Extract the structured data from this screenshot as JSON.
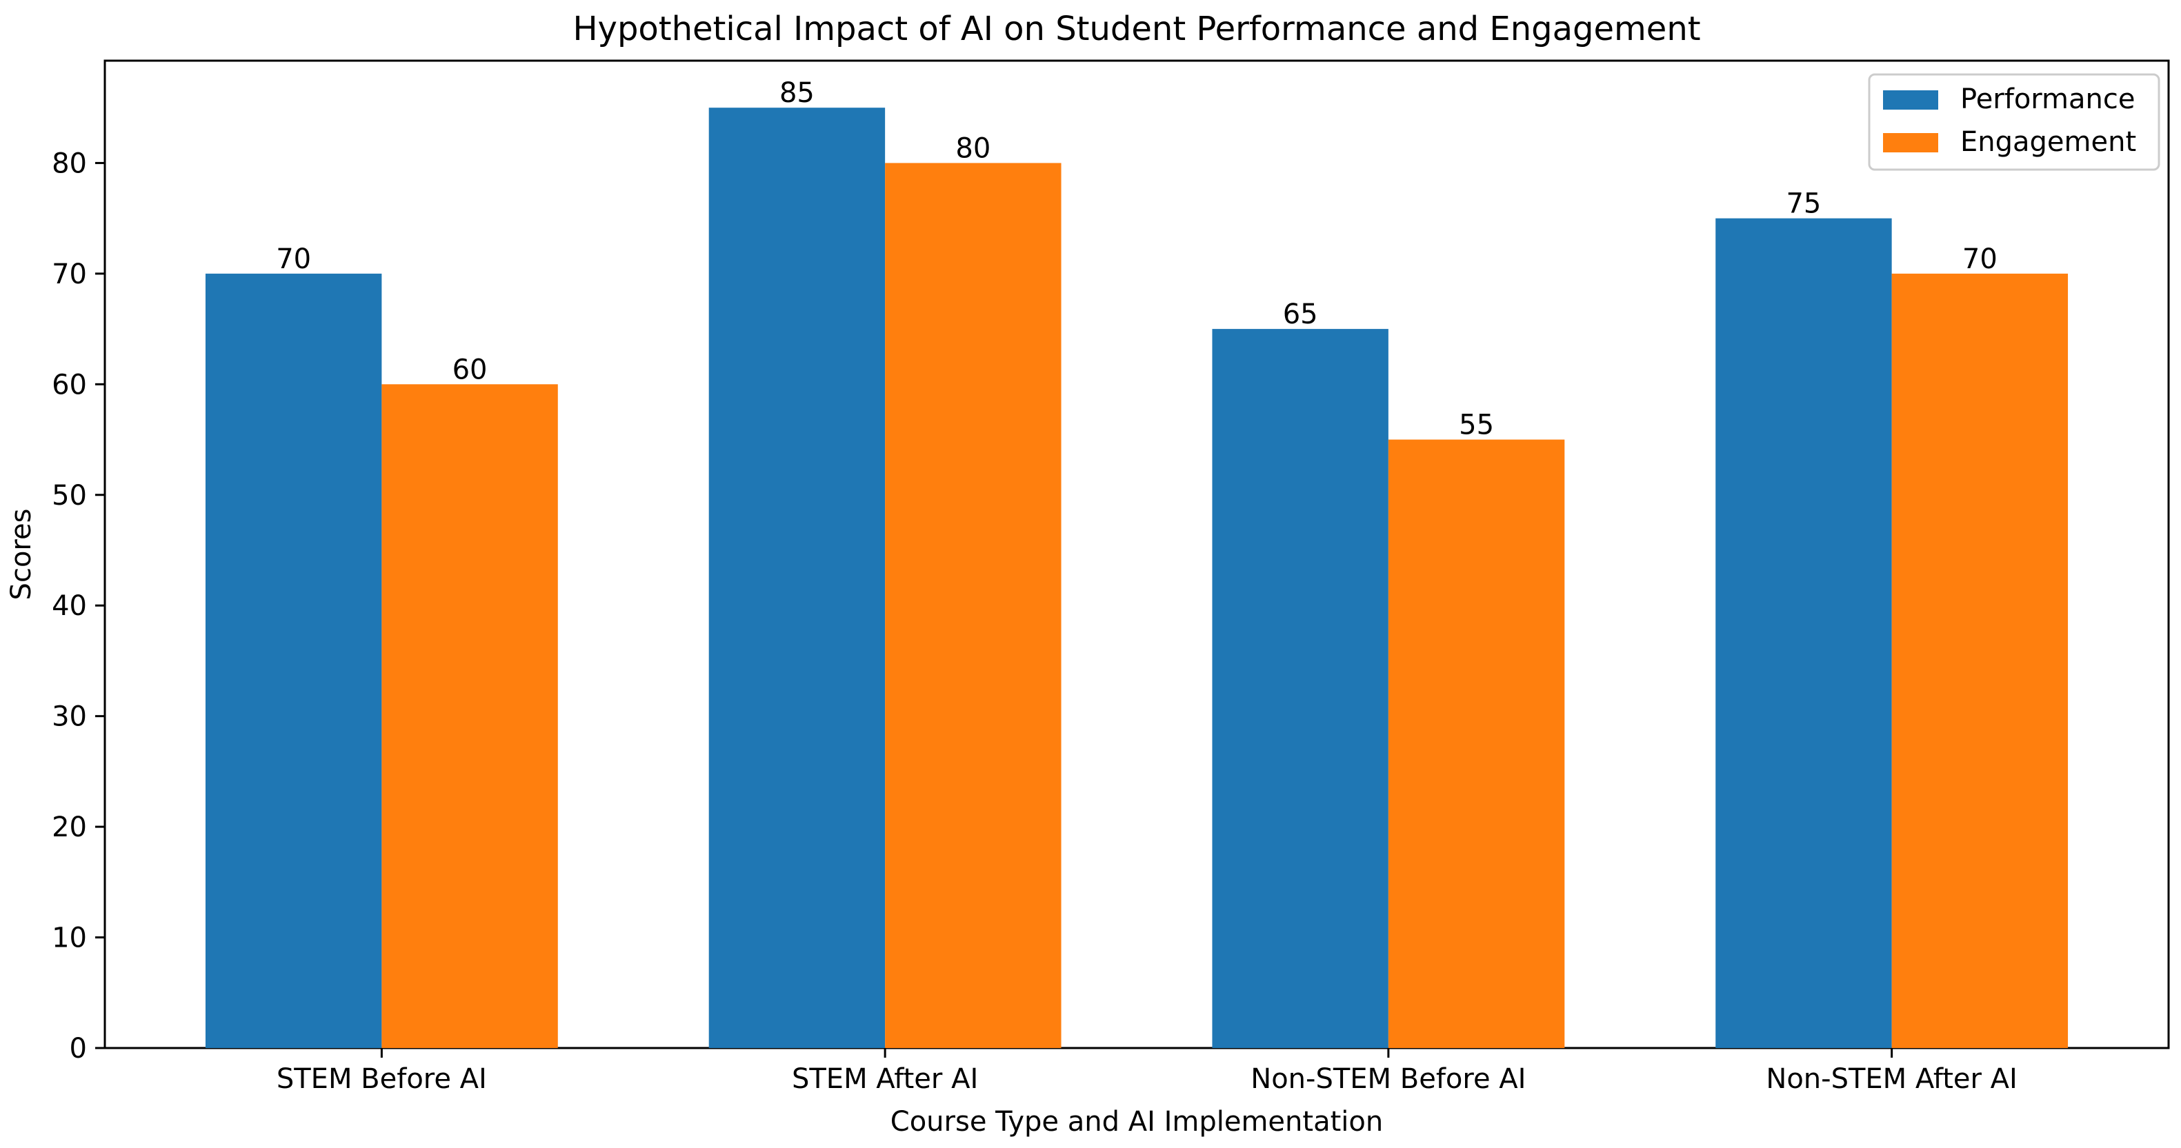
{
  "chart_data": {
    "type": "bar",
    "title": "Hypothetical Impact of AI on Student Performance and Engagement",
    "xlabel": "Course Type and AI Implementation",
    "ylabel": "Scores",
    "categories": [
      "STEM Before AI",
      "STEM After AI",
      "Non-STEM Before AI",
      "Non-STEM After AI"
    ],
    "series": [
      {
        "name": "Performance",
        "values": [
          70,
          85,
          65,
          75
        ],
        "color": "#1f77b4"
      },
      {
        "name": "Engagement",
        "values": [
          60,
          80,
          55,
          70
        ],
        "color": "#ff7f0e"
      }
    ],
    "ylim": [
      0,
      89.25
    ],
    "yticks": [
      0,
      10,
      20,
      30,
      40,
      50,
      60,
      70,
      80
    ],
    "grid": false,
    "legend_position": "top-right",
    "data_labels": true
  }
}
